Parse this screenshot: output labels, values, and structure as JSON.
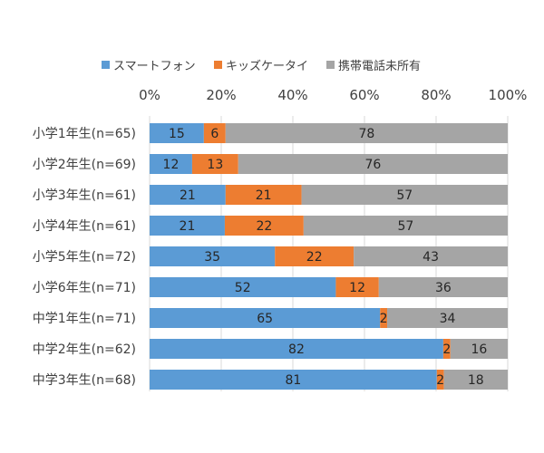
{
  "chart_data": {
    "type": "bar",
    "orientation": "horizontal",
    "stacked": "percent",
    "categories": [
      "小学1年生(n=65)",
      "小学2年生(n=69)",
      "小学3年生(n=61)",
      "小学4年生(n=61)",
      "小学5年生(n=72)",
      "小学6年生(n=71)",
      "中学1年生(n=71)",
      "中学2年生(n=62)",
      "中学3年生(n=68)"
    ],
    "series": [
      {
        "name": "スマートフォン",
        "color": "#5b9bd5",
        "values": [
          15,
          12,
          21,
          21,
          35,
          52,
          65,
          82,
          81
        ]
      },
      {
        "name": "キッズケータイ",
        "color": "#ed7d31",
        "values": [
          6,
          13,
          21,
          22,
          22,
          12,
          2,
          2,
          2
        ]
      },
      {
        "name": "携帯電話未所有",
        "color": "#a5a5a5",
        "values": [
          78,
          76,
          57,
          57,
          43,
          36,
          34,
          16,
          18
        ]
      }
    ],
    "xticks": [
      "0%",
      "20%",
      "40%",
      "60%",
      "80%",
      "100%"
    ],
    "xlim": [
      0,
      100
    ],
    "legend_position": "top",
    "grid": true
  }
}
